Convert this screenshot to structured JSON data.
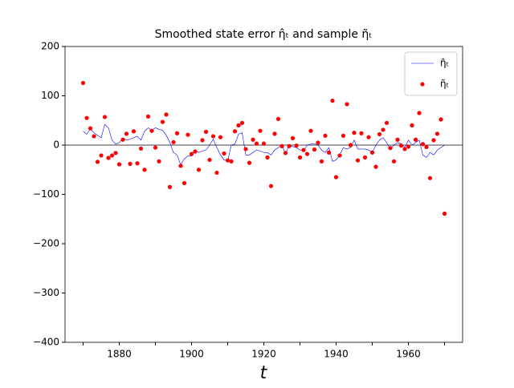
{
  "chart_data": {
    "type": "line+scatter",
    "title": "Smoothed state error η̂ₜ and sample η̃ₜ",
    "xlabel": "t",
    "x": [
      1870,
      1871,
      1872,
      1873,
      1874,
      1875,
      1876,
      1877,
      1878,
      1879,
      1880,
      1881,
      1882,
      1883,
      1884,
      1885,
      1886,
      1887,
      1888,
      1889,
      1890,
      1891,
      1892,
      1893,
      1894,
      1895,
      1896,
      1897,
      1898,
      1899,
      1900,
      1901,
      1902,
      1903,
      1904,
      1905,
      1906,
      1907,
      1908,
      1909,
      1910,
      1911,
      1912,
      1913,
      1914,
      1915,
      1916,
      1917,
      1918,
      1919,
      1920,
      1921,
      1922,
      1923,
      1924,
      1925,
      1926,
      1927,
      1928,
      1929,
      1930,
      1931,
      1932,
      1933,
      1934,
      1935,
      1936,
      1937,
      1938,
      1939,
      1940,
      1941,
      1942,
      1943,
      1944,
      1945,
      1946,
      1947,
      1948,
      1949,
      1950,
      1951,
      1952,
      1953,
      1954,
      1955,
      1956,
      1957,
      1958,
      1959,
      1960,
      1961,
      1962,
      1963,
      1964,
      1965,
      1966,
      1967,
      1968,
      1969,
      1970
    ],
    "series": [
      {
        "name": "η̂ₜ",
        "kind": "line",
        "color": "#0000ff",
        "values": [
          28,
          22,
          33,
          25,
          20,
          15,
          42,
          35,
          10,
          2,
          5,
          15,
          10,
          12,
          15,
          18,
          10,
          28,
          35,
          30,
          35,
          32,
          30,
          20,
          5,
          -15,
          -20,
          -40,
          -28,
          -22,
          -22,
          -10,
          -15,
          -12,
          -10,
          0,
          12,
          -5,
          -20,
          -30,
          -32,
          0,
          2,
          22,
          25,
          -20,
          -20,
          -15,
          -10,
          -12,
          -15,
          -15,
          -20,
          -10,
          -5,
          0,
          -18,
          0,
          -3,
          -5,
          -10,
          -12,
          0,
          2,
          3,
          0,
          -10,
          -15,
          -5,
          -33,
          -30,
          -20,
          -5,
          -8,
          -5,
          10,
          -8,
          -8,
          -8,
          -10,
          -15,
          0,
          10,
          15,
          5,
          -8,
          0,
          5,
          3,
          -5,
          10,
          0,
          5,
          10,
          -20,
          -25,
          -15,
          -20,
          -10,
          -5,
          0
        ]
      },
      {
        "name": "η̃ₜ",
        "kind": "scatter",
        "color": "#ff0000",
        "values": [
          126,
          55,
          34,
          18,
          -34,
          -21,
          57,
          -26,
          -21,
          -16,
          -39,
          11,
          23,
          -38,
          28,
          -37,
          -7,
          -50,
          58,
          29,
          -5,
          -33,
          47,
          62,
          -85,
          6,
          24,
          -42,
          -77,
          21,
          -18,
          -13,
          -50,
          10,
          27,
          -30,
          18,
          -56,
          16,
          -17,
          -31,
          -33,
          28,
          40,
          45,
          -8,
          -36,
          11,
          3,
          29,
          3,
          -25,
          -83,
          23,
          53,
          -2,
          -16,
          -2,
          14,
          -1,
          -25,
          -10,
          -18,
          29,
          -9,
          5,
          -33,
          19,
          -15,
          90,
          -65,
          -21,
          19,
          83,
          0,
          25,
          -31,
          24,
          -25,
          16,
          -15,
          -44,
          22,
          31,
          45,
          -6,
          -33,
          11,
          -1,
          -8,
          -3,
          40,
          11,
          65,
          2,
          -4,
          -67,
          10,
          23,
          52,
          -139
        ]
      }
    ],
    "xlim": [
      1865,
      1975
    ],
    "xticks": [
      1880,
      1900,
      1920,
      1940,
      1960
    ],
    "xminorticks": [
      1870,
      1890,
      1910,
      1930,
      1950,
      1970
    ],
    "ylim": [
      -400,
      200
    ],
    "yticks": [
      {
        "value": -400,
        "label": "−400"
      },
      {
        "value": -300,
        "label": "−300"
      },
      {
        "value": -200,
        "label": "−200"
      },
      {
        "value": -100,
        "label": "−100"
      },
      0,
      100,
      200
    ],
    "hline": 0,
    "legend": "upper right"
  }
}
